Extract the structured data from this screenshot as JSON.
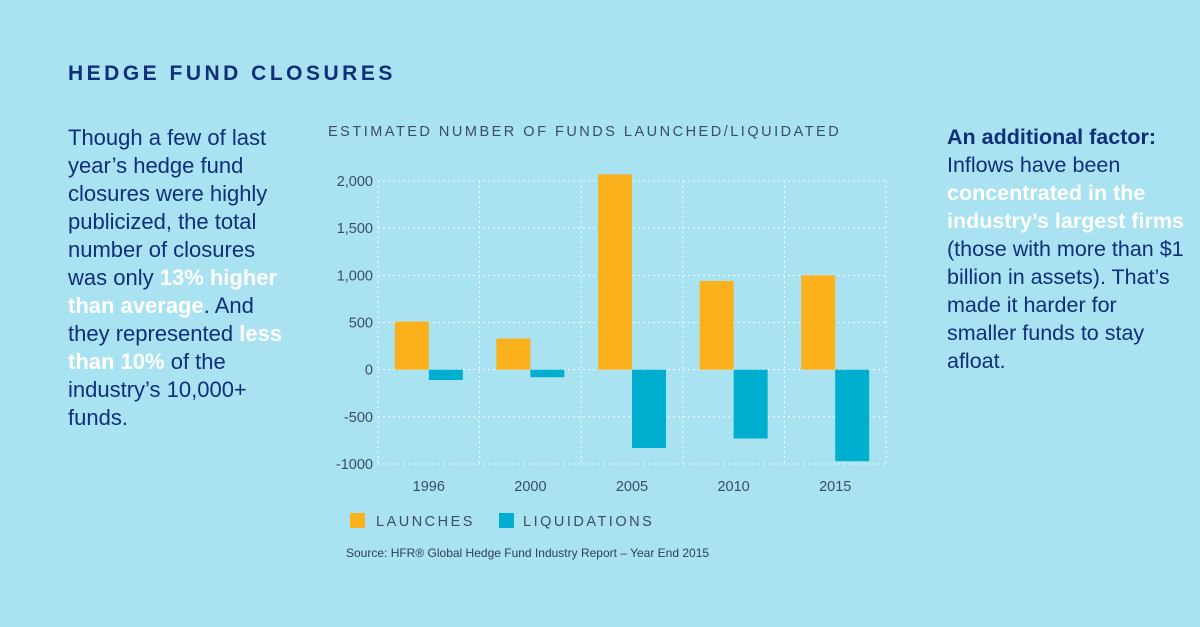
{
  "header": {
    "title": "HEDGE FUND CLOSURES"
  },
  "left_text": {
    "p1": "Though a few of last year’s hedge fund closures were highly publicized, the total number of closures was only ",
    "hl1": "13% higher than average",
    "p2": ". And they represented ",
    "hl2": "less than 10%",
    "p3": " of the industry’s 10,000+ funds."
  },
  "right_panel": {
    "heading": "An additional factor:",
    "p1": "Inflows have been ",
    "hl1": "concentrated in the industry’s largest firms",
    "p2": " (those with more than $1 billion in assets). That’s made it harder for smaller funds to stay afloat."
  },
  "chart_title": "ESTIMATED NUMBER OF FUNDS LAUNCHED/LIQUIDATED",
  "source": "Source: HFR® Global Hedge Fund Industry Report – Year End 2015",
  "colors": {
    "background": "#a9e2f0",
    "launches": "#fbb11b",
    "liquidations": "#00aed0",
    "text": "#0f2f7a"
  },
  "chart_data": {
    "type": "bar",
    "title": "ESTIMATED NUMBER OF FUNDS LAUNCHED/LIQUIDATED",
    "categories": [
      "1996",
      "2000",
      "2005",
      "2010",
      "2015"
    ],
    "series": [
      {
        "name": "LAUNCHES",
        "values": [
          510,
          330,
          2070,
          940,
          1000
        ]
      },
      {
        "name": "LIQUIDATIONS",
        "values": [
          -110,
          -80,
          -830,
          -730,
          -970
        ]
      }
    ],
    "y_ticks": [
      2000,
      1500,
      1000,
      500,
      0,
      -500,
      -1000
    ],
    "y_tick_labels": [
      "2,000",
      "1,500",
      "1,000",
      "500",
      "0",
      "-500",
      "-1000"
    ],
    "ylim": [
      -1000,
      2000
    ],
    "grid": true,
    "legend_position": "bottom-left"
  }
}
